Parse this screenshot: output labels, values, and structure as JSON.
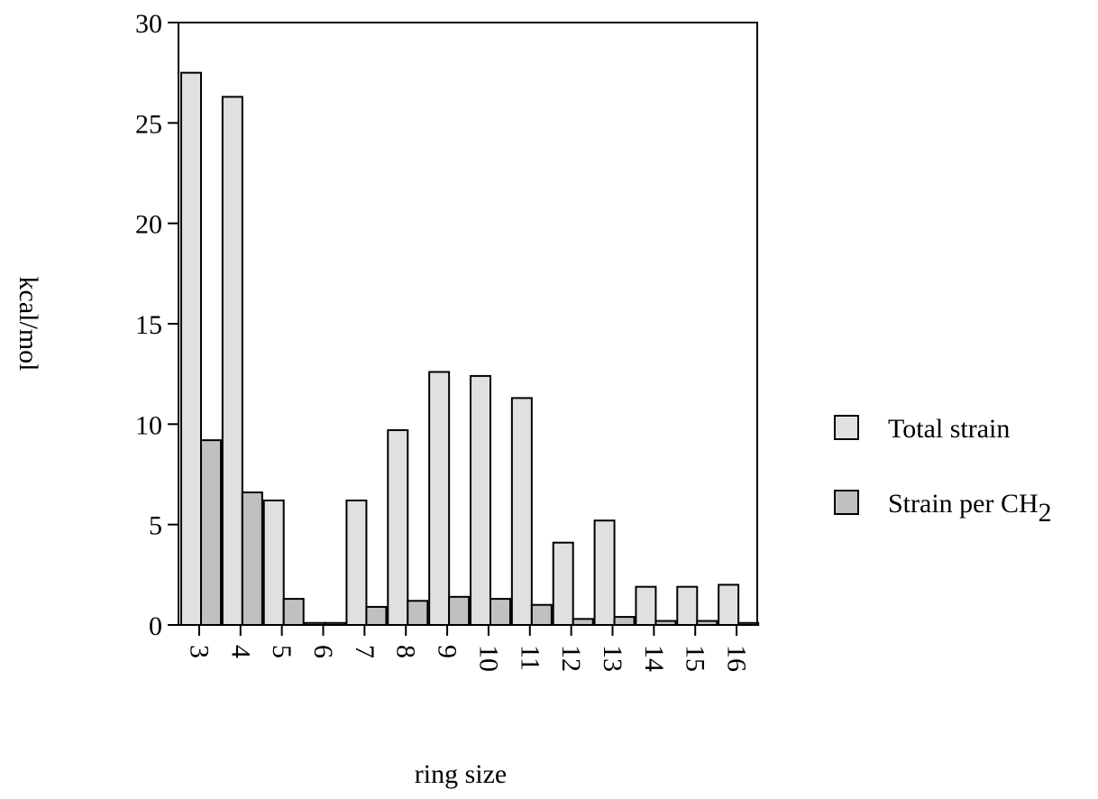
{
  "chart_data": {
    "type": "bar",
    "title": "",
    "xlabel": "ring size",
    "ylabel": "kcal/mol",
    "ylim": [
      0,
      30
    ],
    "yticks": [
      0,
      5,
      10,
      15,
      20,
      25,
      30
    ],
    "grid": false,
    "legend_position": "right",
    "categories": [
      "3",
      "4",
      "5",
      "6",
      "7",
      "8",
      "9",
      "10",
      "11",
      "12",
      "13",
      "14",
      "15",
      "16"
    ],
    "series": [
      {
        "name": "Total strain",
        "color": "#e0e0e0",
        "values": [
          27.5,
          26.3,
          6.2,
          0.1,
          6.2,
          9.7,
          12.6,
          12.4,
          11.3,
          4.1,
          5.2,
          1.9,
          1.9,
          2.0
        ]
      },
      {
        "name": "Strain per CH2",
        "color": "#c0c0c0",
        "values": [
          9.2,
          6.6,
          1.3,
          0.1,
          0.9,
          1.2,
          1.4,
          1.3,
          1.0,
          0.3,
          0.4,
          0.2,
          0.2,
          0.1
        ]
      }
    ]
  }
}
